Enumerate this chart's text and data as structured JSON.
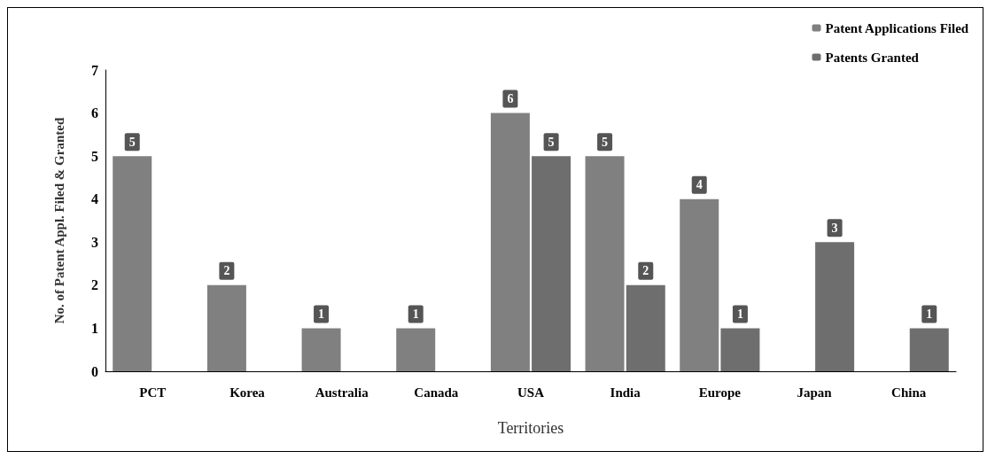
{
  "chart_data": {
    "type": "bar",
    "xlabel": "Territories",
    "ylabel": "No. of Patent Appl. Filed & Granted",
    "categories": [
      "PCT",
      "Korea",
      "Australia",
      "Canada",
      "USA",
      "India",
      "Europe",
      "Japan",
      "China"
    ],
    "series": [
      {
        "name": "Patent Applications Filed",
        "color": "#808080",
        "values": [
          5,
          2,
          1,
          1,
          6,
          5,
          4,
          null,
          null
        ]
      },
      {
        "name": "Patents Granted",
        "color": "#6e6e6e",
        "values": [
          null,
          null,
          null,
          null,
          5,
          2,
          1,
          3,
          1
        ]
      }
    ],
    "ylim": [
      0,
      7
    ],
    "yticks": [
      0,
      1,
      2,
      3,
      4,
      5,
      6,
      7
    ],
    "grid": false,
    "legend": "top right",
    "data_labels": true
  }
}
